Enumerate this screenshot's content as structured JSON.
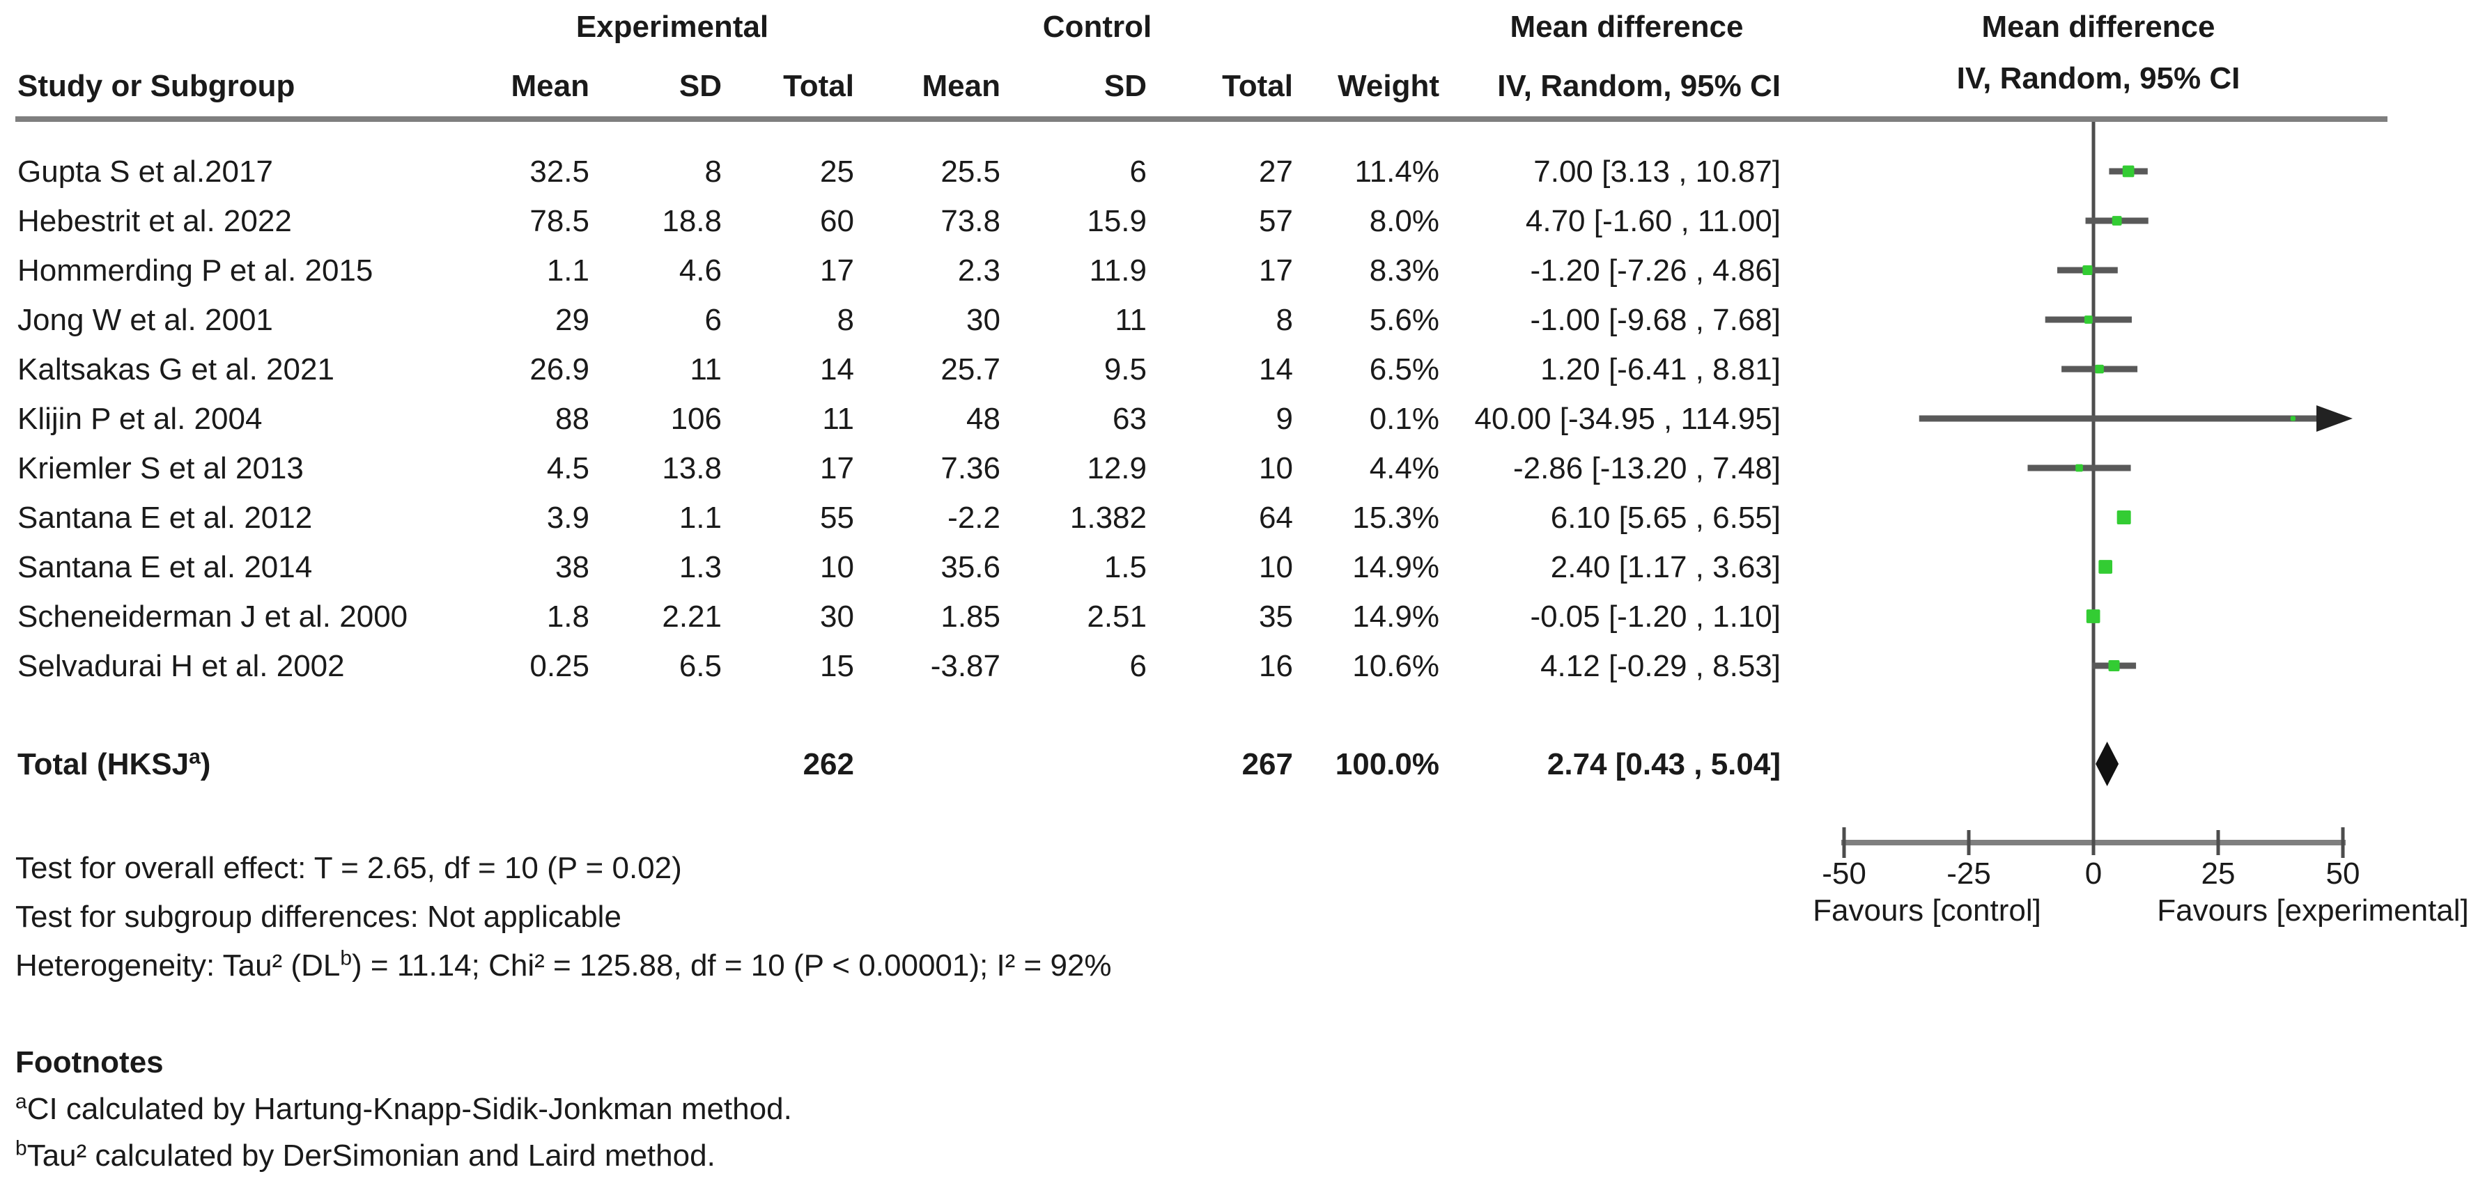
{
  "colors": {
    "marker_green": "#33cc33",
    "ci_line": "#595959",
    "rule_gray": "#7f7f7f",
    "tick_gray": "#4d4d4d",
    "diamond_black": "#111111",
    "arrow_black": "#222222"
  },
  "header": {
    "group_experimental": "Experimental",
    "group_control": "Control",
    "group_mean_difference_text": "Mean difference",
    "group_mean_difference_plot": "Mean difference",
    "ci_plot_subheader": "IV, Random, 95% CI"
  },
  "table": {
    "columns": [
      "Study or Subgroup",
      "Mean",
      "SD",
      "Total",
      "Mean",
      "SD",
      "Total",
      "Weight",
      "IV, Random, 95% CI"
    ],
    "rows": [
      [
        "Gupta S et al.2017",
        "32.5",
        "8",
        "25",
        "25.5",
        "6",
        "27",
        "11.4%",
        "7.00 [3.13 , 10.87]"
      ],
      [
        "Hebestrit et al. 2022",
        "78.5",
        "18.8",
        "60",
        "73.8",
        "15.9",
        "57",
        "8.0%",
        "4.70 [-1.60 , 11.00]"
      ],
      [
        "Hommerding P et al. 2015",
        "1.1",
        "4.6",
        "17",
        "2.3",
        "11.9",
        "17",
        "8.3%",
        "-1.20 [-7.26 , 4.86]"
      ],
      [
        "Jong W et al. 2001",
        "29",
        "6",
        "8",
        "30",
        "11",
        "8",
        "5.6%",
        "-1.00 [-9.68 , 7.68]"
      ],
      [
        "Kaltsakas G et al. 2021",
        "26.9",
        "11",
        "14",
        "25.7",
        "9.5",
        "14",
        "6.5%",
        "1.20 [-6.41 , 8.81]"
      ],
      [
        "Klijin P et al. 2004",
        "88",
        "106",
        "11",
        "48",
        "63",
        "9",
        "0.1%",
        "40.00 [-34.95 , 114.95]"
      ],
      [
        "Kriemler S et al 2013",
        "4.5",
        "13.8",
        "17",
        "7.36",
        "12.9",
        "10",
        "4.4%",
        "-2.86 [-13.20 , 7.48]"
      ],
      [
        "Santana E et al. 2012",
        "3.9",
        "1.1",
        "55",
        "-2.2",
        "1.382",
        "64",
        "15.3%",
        "6.10 [5.65 , 6.55]"
      ],
      [
        "Santana E et al. 2014",
        "38",
        "1.3",
        "10",
        "35.6",
        "1.5",
        "10",
        "14.9%",
        "2.40 [1.17 , 3.63]"
      ],
      [
        "Scheneiderman J et al. 2000",
        "1.8",
        "2.21",
        "30",
        "1.85",
        "2.51",
        "35",
        "14.9%",
        "-0.05 [-1.20 , 1.10]"
      ],
      [
        "Selvadurai H et al. 2002",
        "0.25",
        "6.5",
        "15",
        "-3.87",
        "6",
        "16",
        "10.6%",
        "4.12 [-0.29 , 8.53]"
      ]
    ]
  },
  "total_row": {
    "label_pre": "Total (HKSJ",
    "label_sup": "a",
    "label_post": ")",
    "e_total": "262",
    "c_total": "267",
    "weight": "100.0%",
    "ci": "2.74 [0.43 , 5.04]"
  },
  "stats": {
    "line1": "Test for overall effect: T = 2.65, df = 10 (P = 0.02)",
    "line2": "Test for subgroup differences: Not applicable",
    "het_pre": "Heterogeneity: Tau² (DL",
    "het_sup": "b",
    "het_post": ") = 11.14; Chi² = 125.88, df = 10 (P < 0.00001); I² = 92%"
  },
  "footnotes": {
    "title": "Footnotes",
    "a_sup": "a",
    "a_text": "CI calculated by Hartung-Knapp-Sidik-Jonkman method.",
    "b_sup": "b",
    "b_text": "Tau² calculated by DerSimonian and Laird method."
  },
  "axis": {
    "tick_labels": [
      "-50",
      "-25",
      "0",
      "25",
      "50"
    ],
    "tick_values": [
      -50,
      -25,
      0,
      25,
      50
    ],
    "min": -50,
    "max": 50,
    "favours_left": "Favours [control]",
    "favours_right": "Favours [experimental]"
  },
  "chart_data": {
    "type": "scatter",
    "subtype": "forest-plot",
    "title": "Mean difference, IV, Random, 95% CI",
    "xlabel_left": "Favours [control]",
    "xlabel_right": "Favours [experimental]",
    "xlim": [
      -50,
      50
    ],
    "categories": [
      "Gupta S et al.2017",
      "Hebestrit et al. 2022",
      "Hommerding P et al. 2015",
      "Jong W et al. 2001",
      "Kaltsakas G et al. 2021",
      "Klijin P et al. 2004",
      "Kriemler S et al 2013",
      "Santana E et al. 2012",
      "Santana E et al. 2014",
      "Scheneiderman J et al. 2000",
      "Selvadurai H et al. 2002"
    ],
    "points": [
      {
        "est": 7.0,
        "lo": 3.13,
        "hi": 10.87,
        "weight": 11.4,
        "arrow_right": false
      },
      {
        "est": 4.7,
        "lo": -1.6,
        "hi": 11.0,
        "weight": 8.0,
        "arrow_right": false
      },
      {
        "est": -1.2,
        "lo": -7.26,
        "hi": 4.86,
        "weight": 8.3,
        "arrow_right": false
      },
      {
        "est": -1.0,
        "lo": -9.68,
        "hi": 7.68,
        "weight": 5.6,
        "arrow_right": false
      },
      {
        "est": 1.2,
        "lo": -6.41,
        "hi": 8.81,
        "weight": 6.5,
        "arrow_right": false
      },
      {
        "est": 40.0,
        "lo": -34.95,
        "hi": 114.95,
        "weight": 0.1,
        "arrow_right": true
      },
      {
        "est": -2.86,
        "lo": -13.2,
        "hi": 7.48,
        "weight": 4.4,
        "arrow_right": false
      },
      {
        "est": 6.1,
        "lo": 5.65,
        "hi": 6.55,
        "weight": 15.3,
        "arrow_right": false
      },
      {
        "est": 2.4,
        "lo": 1.17,
        "hi": 3.63,
        "weight": 14.9,
        "arrow_right": false
      },
      {
        "est": -0.05,
        "lo": -1.2,
        "hi": 1.1,
        "weight": 14.9,
        "arrow_right": false
      },
      {
        "est": 4.12,
        "lo": -0.29,
        "hi": 8.53,
        "weight": 10.6,
        "arrow_right": false
      }
    ],
    "summary": {
      "label": "Total (HKSJᵃ)",
      "est": 2.74,
      "lo": 0.43,
      "hi": 5.04,
      "weight": 100.0
    },
    "totals": {
      "experimental_n": 262,
      "control_n": 267
    }
  }
}
